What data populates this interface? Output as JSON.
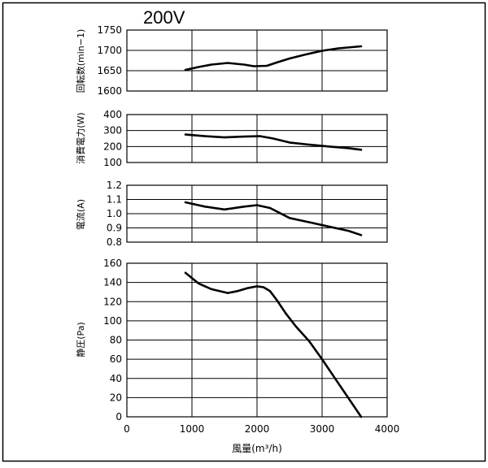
{
  "chart_data": {
    "type": "line",
    "title": "200V",
    "xlabel": "風量(m³/h)",
    "xlim": [
      0,
      4000
    ],
    "x_ticks": [
      "0",
      "1000",
      "2000",
      "3000",
      "4000"
    ],
    "grid": true,
    "panels": [
      {
        "ylabel": "回転数(min−1)",
        "ylim": [
          1600,
          1750
        ],
        "y_ticks": [
          "1600",
          "1650",
          "1700",
          "1750"
        ],
        "series": [
          {
            "x": [
              900,
              1100,
              1300,
              1550,
              1800,
              1950,
              2150,
              2300,
              2500,
              2750,
              3000,
              3250,
              3600
            ],
            "y": [
              1652,
              1659,
              1665,
              1669,
              1665,
              1661,
              1662,
              1670,
              1680,
              1690,
              1699,
              1705,
              1710
            ]
          }
        ]
      },
      {
        "ylabel": "消費電力(W)",
        "ylim": [
          100,
          400
        ],
        "y_ticks": [
          "100",
          "200",
          "300",
          "400"
        ],
        "series": [
          {
            "x": [
              900,
              1200,
              1500,
              1800,
              2050,
              2250,
              2500,
              2800,
              3100,
              3400,
              3600
            ],
            "y": [
              275,
              265,
              257,
              262,
              265,
              250,
              225,
              212,
              200,
              190,
              180
            ]
          }
        ]
      },
      {
        "ylabel": "電流(A)",
        "ylim": [
          0.8,
          1.2
        ],
        "y_ticks": [
          "0.8",
          "0.9",
          "1.0",
          "1.1",
          "1.2"
        ],
        "series": [
          {
            "x": [
              900,
              1200,
              1500,
              1800,
              2000,
              2200,
              2500,
              2800,
              3100,
              3400,
              3600
            ],
            "y": [
              1.08,
              1.05,
              1.03,
              1.05,
              1.06,
              1.04,
              0.97,
              0.94,
              0.91,
              0.88,
              0.85
            ]
          }
        ]
      },
      {
        "ylabel": "静圧(Pa)",
        "ylim": [
          0,
          160
        ],
        "y_ticks": [
          "0",
          "20",
          "40",
          "60",
          "80",
          "100",
          "120",
          "140",
          "160"
        ],
        "series": [
          {
            "x": [
              900,
              1100,
              1300,
              1550,
              1700,
              1850,
              2000,
              2100,
              2200,
              2300,
              2450,
              2600,
              2800,
              3000,
              3200,
              3400,
              3600
            ],
            "y": [
              150,
              139,
              133,
              129,
              131,
              134,
              136,
              135,
              131,
              122,
              107,
              94,
              79,
              60,
              40,
              20,
              0
            ]
          }
        ]
      }
    ]
  }
}
